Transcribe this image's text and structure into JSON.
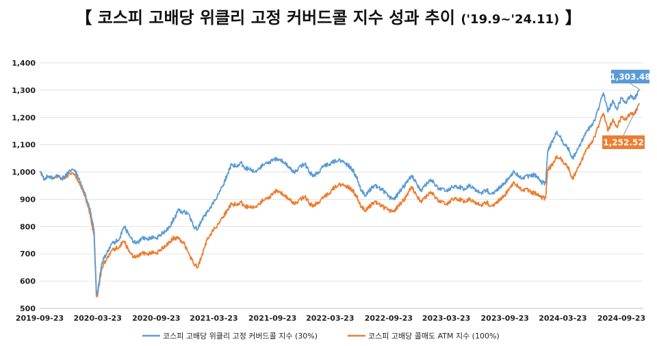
{
  "chart_data": {
    "type": "line",
    "title_main": "【 코스피 고배당 위클리 고정 커버드콜 지수 성과 추이",
    "title_period": "('19.9~'24.11)",
    "title_end": "】",
    "x_tick_labels": [
      "2019-09-23",
      "2020-03-23",
      "2020-09-23",
      "2021-03-23",
      "2021-09-23",
      "2022-03-23",
      "2022-09-23",
      "2023-03-23",
      "2023-09-23",
      "2024-03-23",
      "2024-09-23"
    ],
    "y_tick_labels": [
      "500",
      "600",
      "700",
      "800",
      "900",
      "1,000",
      "1,100",
      "1,200",
      "1,300",
      "1,400"
    ],
    "ylim": [
      500,
      1400
    ],
    "grid": true,
    "legend_position": "bottom",
    "series": [
      {
        "name": "코스피 고배당 위클리 고정 커버드콜 지수 (30%)",
        "color": "#5b9bd5",
        "end_label": "1,303.48",
        "points": [
          [
            "2019-09-23",
            1000
          ],
          [
            "2019-10-07",
            975
          ],
          [
            "2019-10-21",
            985
          ],
          [
            "2019-11-04",
            980
          ],
          [
            "2019-11-18",
            990
          ],
          [
            "2019-12-02",
            975
          ],
          [
            "2019-12-16",
            990
          ],
          [
            "2020-01-06",
            1010
          ],
          [
            "2020-01-20",
            990
          ],
          [
            "2020-02-03",
            950
          ],
          [
            "2020-02-17",
            900
          ],
          [
            "2020-03-02",
            850
          ],
          [
            "2020-03-12",
            780
          ],
          [
            "2020-03-19",
            555
          ],
          [
            "2020-03-23",
            560
          ],
          [
            "2020-04-06",
            670
          ],
          [
            "2020-04-20",
            700
          ],
          [
            "2020-05-04",
            735
          ],
          [
            "2020-05-18",
            745
          ],
          [
            "2020-06-01",
            760
          ],
          [
            "2020-06-15",
            800
          ],
          [
            "2020-06-29",
            770
          ],
          [
            "2020-07-13",
            745
          ],
          [
            "2020-07-27",
            740
          ],
          [
            "2020-08-10",
            760
          ],
          [
            "2020-08-24",
            755
          ],
          [
            "2020-09-07",
            760
          ],
          [
            "2020-09-23",
            755
          ],
          [
            "2020-10-07",
            770
          ],
          [
            "2020-10-21",
            785
          ],
          [
            "2020-11-04",
            800
          ],
          [
            "2020-11-18",
            830
          ],
          [
            "2020-12-02",
            860
          ],
          [
            "2020-12-16",
            855
          ],
          [
            "2021-01-04",
            845
          ],
          [
            "2021-01-18",
            800
          ],
          [
            "2021-02-01",
            790
          ],
          [
            "2021-02-15",
            830
          ],
          [
            "2021-03-01",
            850
          ],
          [
            "2021-03-23",
            890
          ],
          [
            "2021-04-06",
            920
          ],
          [
            "2021-04-20",
            950
          ],
          [
            "2021-05-04",
            990
          ],
          [
            "2021-05-18",
            1030
          ],
          [
            "2021-06-01",
            1020
          ],
          [
            "2021-06-15",
            1035
          ],
          [
            "2021-06-29",
            1015
          ],
          [
            "2021-07-13",
            1010
          ],
          [
            "2021-07-27",
            1000
          ],
          [
            "2021-08-10",
            1010
          ],
          [
            "2021-08-24",
            1025
          ],
          [
            "2021-09-07",
            1035
          ],
          [
            "2021-09-23",
            1040
          ],
          [
            "2021-10-07",
            1050
          ],
          [
            "2021-10-21",
            1045
          ],
          [
            "2021-11-04",
            1030
          ],
          [
            "2021-11-18",
            1010
          ],
          [
            "2021-12-02",
            995
          ],
          [
            "2021-12-16",
            1020
          ],
          [
            "2022-01-03",
            1030
          ],
          [
            "2022-01-17",
            1000
          ],
          [
            "2022-01-31",
            985
          ],
          [
            "2022-02-14",
            1000
          ],
          [
            "2022-03-02",
            1020
          ],
          [
            "2022-03-23",
            1030
          ],
          [
            "2022-04-06",
            1040
          ],
          [
            "2022-04-20",
            1045
          ],
          [
            "2022-05-04",
            1035
          ],
          [
            "2022-05-18",
            1025
          ],
          [
            "2022-06-01",
            1010
          ],
          [
            "2022-06-15",
            980
          ],
          [
            "2022-06-29",
            930
          ],
          [
            "2022-07-13",
            915
          ],
          [
            "2022-07-27",
            935
          ],
          [
            "2022-08-10",
            950
          ],
          [
            "2022-08-24",
            945
          ],
          [
            "2022-09-07",
            930
          ],
          [
            "2022-09-23",
            910
          ],
          [
            "2022-10-07",
            900
          ],
          [
            "2022-10-21",
            915
          ],
          [
            "2022-11-04",
            940
          ],
          [
            "2022-11-18",
            960
          ],
          [
            "2022-12-02",
            985
          ],
          [
            "2022-12-16",
            970
          ],
          [
            "2023-01-02",
            930
          ],
          [
            "2023-01-16",
            950
          ],
          [
            "2023-01-30",
            970
          ],
          [
            "2023-02-13",
            960
          ],
          [
            "2023-02-27",
            940
          ],
          [
            "2023-03-23",
            930
          ],
          [
            "2023-04-06",
            940
          ],
          [
            "2023-04-20",
            950
          ],
          [
            "2023-05-04",
            945
          ],
          [
            "2023-05-18",
            935
          ],
          [
            "2023-06-01",
            950
          ],
          [
            "2023-06-15",
            945
          ],
          [
            "2023-06-29",
            930
          ],
          [
            "2023-07-13",
            925
          ],
          [
            "2023-07-27",
            935
          ],
          [
            "2023-08-10",
            920
          ],
          [
            "2023-08-24",
            930
          ],
          [
            "2023-09-07",
            945
          ],
          [
            "2023-09-23",
            960
          ],
          [
            "2023-10-09",
            985
          ],
          [
            "2023-10-23",
            1000
          ],
          [
            "2023-11-06",
            985
          ],
          [
            "2023-11-20",
            975
          ],
          [
            "2023-12-04",
            985
          ],
          [
            "2023-12-18",
            990
          ],
          [
            "2024-01-02",
            985
          ],
          [
            "2024-01-16",
            960
          ],
          [
            "2024-01-29",
            960
          ],
          [
            "2024-02-05",
            1080
          ],
          [
            "2024-02-19",
            1110
          ],
          [
            "2024-03-04",
            1150
          ],
          [
            "2024-03-23",
            1110
          ],
          [
            "2024-04-08",
            1090
          ],
          [
            "2024-04-22",
            1050
          ],
          [
            "2024-05-06",
            1075
          ],
          [
            "2024-05-20",
            1110
          ],
          [
            "2024-06-03",
            1140
          ],
          [
            "2024-06-17",
            1165
          ],
          [
            "2024-07-01",
            1190
          ],
          [
            "2024-07-15",
            1240
          ],
          [
            "2024-07-29",
            1290
          ],
          [
            "2024-08-12",
            1220
          ],
          [
            "2024-08-26",
            1260
          ],
          [
            "2024-09-09",
            1230
          ],
          [
            "2024-09-23",
            1270
          ],
          [
            "2024-10-07",
            1255
          ],
          [
            "2024-10-21",
            1280
          ],
          [
            "2024-11-04",
            1270
          ],
          [
            "2024-11-18",
            1303.48
          ]
        ]
      },
      {
        "name": "코스피 고배당 콜매도 ATM 지수 (100%)",
        "color": "#ed7d31",
        "end_label": "1,252.52",
        "points": [
          [
            "2019-09-23",
            1000
          ],
          [
            "2019-10-07",
            975
          ],
          [
            "2019-10-21",
            985
          ],
          [
            "2019-11-04",
            980
          ],
          [
            "2019-11-18",
            985
          ],
          [
            "2019-12-02",
            975
          ],
          [
            "2019-12-16",
            985
          ],
          [
            "2020-01-06",
            995
          ],
          [
            "2020-01-20",
            975
          ],
          [
            "2020-02-03",
            940
          ],
          [
            "2020-02-17",
            890
          ],
          [
            "2020-03-02",
            830
          ],
          [
            "2020-03-12",
            760
          ],
          [
            "2020-03-19",
            545
          ],
          [
            "2020-03-23",
            550
          ],
          [
            "2020-04-06",
            650
          ],
          [
            "2020-04-20",
            680
          ],
          [
            "2020-05-04",
            710
          ],
          [
            "2020-05-18",
            720
          ],
          [
            "2020-06-01",
            730
          ],
          [
            "2020-06-15",
            745
          ],
          [
            "2020-06-29",
            710
          ],
          [
            "2020-07-13",
            690
          ],
          [
            "2020-07-27",
            690
          ],
          [
            "2020-08-10",
            705
          ],
          [
            "2020-08-24",
            700
          ],
          [
            "2020-09-07",
            705
          ],
          [
            "2020-09-23",
            700
          ],
          [
            "2020-10-07",
            715
          ],
          [
            "2020-10-21",
            730
          ],
          [
            "2020-11-04",
            745
          ],
          [
            "2020-11-18",
            760
          ],
          [
            "2020-12-02",
            755
          ],
          [
            "2020-12-16",
            745
          ],
          [
            "2021-01-04",
            700
          ],
          [
            "2021-01-18",
            665
          ],
          [
            "2021-02-01",
            650
          ],
          [
            "2021-02-15",
            700
          ],
          [
            "2021-03-01",
            750
          ],
          [
            "2021-03-23",
            790
          ],
          [
            "2021-04-06",
            810
          ],
          [
            "2021-04-20",
            835
          ],
          [
            "2021-05-04",
            860
          ],
          [
            "2021-05-18",
            885
          ],
          [
            "2021-06-01",
            880
          ],
          [
            "2021-06-15",
            890
          ],
          [
            "2021-06-29",
            875
          ],
          [
            "2021-07-13",
            870
          ],
          [
            "2021-07-27",
            870
          ],
          [
            "2021-08-10",
            880
          ],
          [
            "2021-08-24",
            895
          ],
          [
            "2021-09-07",
            905
          ],
          [
            "2021-09-23",
            915
          ],
          [
            "2021-10-07",
            935
          ],
          [
            "2021-10-21",
            925
          ],
          [
            "2021-11-04",
            910
          ],
          [
            "2021-11-18",
            895
          ],
          [
            "2021-12-02",
            880
          ],
          [
            "2021-12-16",
            900
          ],
          [
            "2022-01-03",
            910
          ],
          [
            "2022-01-17",
            885
          ],
          [
            "2022-01-31",
            875
          ],
          [
            "2022-02-14",
            890
          ],
          [
            "2022-03-02",
            905
          ],
          [
            "2022-03-23",
            925
          ],
          [
            "2022-04-06",
            945
          ],
          [
            "2022-04-20",
            955
          ],
          [
            "2022-05-04",
            950
          ],
          [
            "2022-05-18",
            945
          ],
          [
            "2022-06-01",
            935
          ],
          [
            "2022-06-15",
            910
          ],
          [
            "2022-06-29",
            870
          ],
          [
            "2022-07-13",
            860
          ],
          [
            "2022-07-27",
            875
          ],
          [
            "2022-08-10",
            890
          ],
          [
            "2022-08-24",
            885
          ],
          [
            "2022-09-07",
            870
          ],
          [
            "2022-09-23",
            860
          ],
          [
            "2022-10-07",
            855
          ],
          [
            "2022-10-21",
            870
          ],
          [
            "2022-11-04",
            890
          ],
          [
            "2022-11-18",
            910
          ],
          [
            "2022-12-02",
            945
          ],
          [
            "2022-12-16",
            925
          ],
          [
            "2023-01-02",
            890
          ],
          [
            "2023-01-16",
            905
          ],
          [
            "2023-01-30",
            925
          ],
          [
            "2023-02-13",
            915
          ],
          [
            "2023-02-27",
            895
          ],
          [
            "2023-03-23",
            880
          ],
          [
            "2023-04-06",
            895
          ],
          [
            "2023-04-20",
            905
          ],
          [
            "2023-05-04",
            900
          ],
          [
            "2023-05-18",
            890
          ],
          [
            "2023-06-01",
            900
          ],
          [
            "2023-06-15",
            895
          ],
          [
            "2023-06-29",
            885
          ],
          [
            "2023-07-13",
            880
          ],
          [
            "2023-07-27",
            890
          ],
          [
            "2023-08-10",
            875
          ],
          [
            "2023-08-24",
            885
          ],
          [
            "2023-09-07",
            900
          ],
          [
            "2023-09-23",
            915
          ],
          [
            "2023-10-09",
            945
          ],
          [
            "2023-10-23",
            960
          ],
          [
            "2023-11-06",
            945
          ],
          [
            "2023-11-20",
            930
          ],
          [
            "2023-12-04",
            935
          ],
          [
            "2023-12-18",
            925
          ],
          [
            "2024-01-02",
            920
          ],
          [
            "2024-01-16",
            905
          ],
          [
            "2024-01-29",
            905
          ],
          [
            "2024-02-05",
            1010
          ],
          [
            "2024-02-19",
            1025
          ],
          [
            "2024-03-04",
            1060
          ],
          [
            "2024-03-23",
            1040
          ],
          [
            "2024-04-08",
            1020
          ],
          [
            "2024-04-22",
            975
          ],
          [
            "2024-05-06",
            1005
          ],
          [
            "2024-05-20",
            1040
          ],
          [
            "2024-06-03",
            1075
          ],
          [
            "2024-06-17",
            1100
          ],
          [
            "2024-07-01",
            1130
          ],
          [
            "2024-07-15",
            1175
          ],
          [
            "2024-07-29",
            1215
          ],
          [
            "2024-08-12",
            1150
          ],
          [
            "2024-08-26",
            1190
          ],
          [
            "2024-09-09",
            1165
          ],
          [
            "2024-09-23",
            1200
          ],
          [
            "2024-10-07",
            1195
          ],
          [
            "2024-10-21",
            1215
          ],
          [
            "2024-11-04",
            1215
          ],
          [
            "2024-11-18",
            1252.52
          ]
        ]
      }
    ]
  }
}
